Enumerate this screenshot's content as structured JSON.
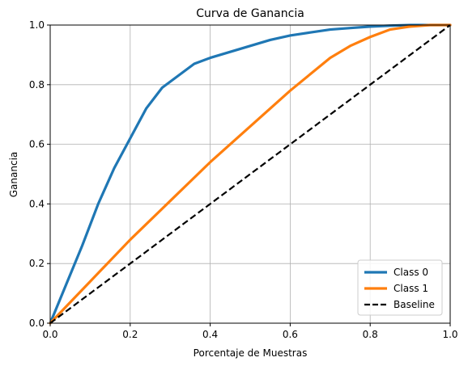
{
  "chart_data": {
    "type": "line",
    "title": "Curva de Ganancia",
    "xlabel": "Porcentaje de Muestras",
    "ylabel": "Ganancia",
    "xlim": [
      0,
      1
    ],
    "ylim": [
      0,
      1
    ],
    "xticks": [
      "0.0",
      "0.2",
      "0.4",
      "0.6",
      "0.8",
      "1.0"
    ],
    "yticks": [
      "0.0",
      "0.2",
      "0.4",
      "0.6",
      "0.8",
      "1.0"
    ],
    "grid": true,
    "legend_position": "lower-right",
    "series": [
      {
        "name": "Class 0",
        "color": "#1f77b4",
        "style": "solid",
        "x": [
          0,
          0.04,
          0.08,
          0.12,
          0.16,
          0.2,
          0.24,
          0.28,
          0.32,
          0.36,
          0.4,
          0.45,
          0.5,
          0.55,
          0.6,
          0.65,
          0.7,
          0.75,
          0.8,
          0.85,
          0.9,
          0.95,
          1.0
        ],
        "y": [
          0,
          0.13,
          0.26,
          0.4,
          0.52,
          0.62,
          0.72,
          0.79,
          0.83,
          0.87,
          0.89,
          0.91,
          0.93,
          0.95,
          0.965,
          0.975,
          0.985,
          0.99,
          0.995,
          0.998,
          1.0,
          1.0,
          1.0
        ]
      },
      {
        "name": "Class 1",
        "color": "#ff7f0e",
        "style": "solid",
        "x": [
          0,
          0.1,
          0.2,
          0.3,
          0.4,
          0.5,
          0.6,
          0.7,
          0.75,
          0.8,
          0.85,
          0.9,
          0.95,
          1.0
        ],
        "y": [
          0,
          0.14,
          0.28,
          0.41,
          0.54,
          0.66,
          0.78,
          0.89,
          0.93,
          0.96,
          0.985,
          0.995,
          1.0,
          1.0
        ]
      },
      {
        "name": "Baseline",
        "color": "#000000",
        "style": "dashed",
        "x": [
          0,
          1
        ],
        "y": [
          0,
          1
        ]
      }
    ]
  }
}
